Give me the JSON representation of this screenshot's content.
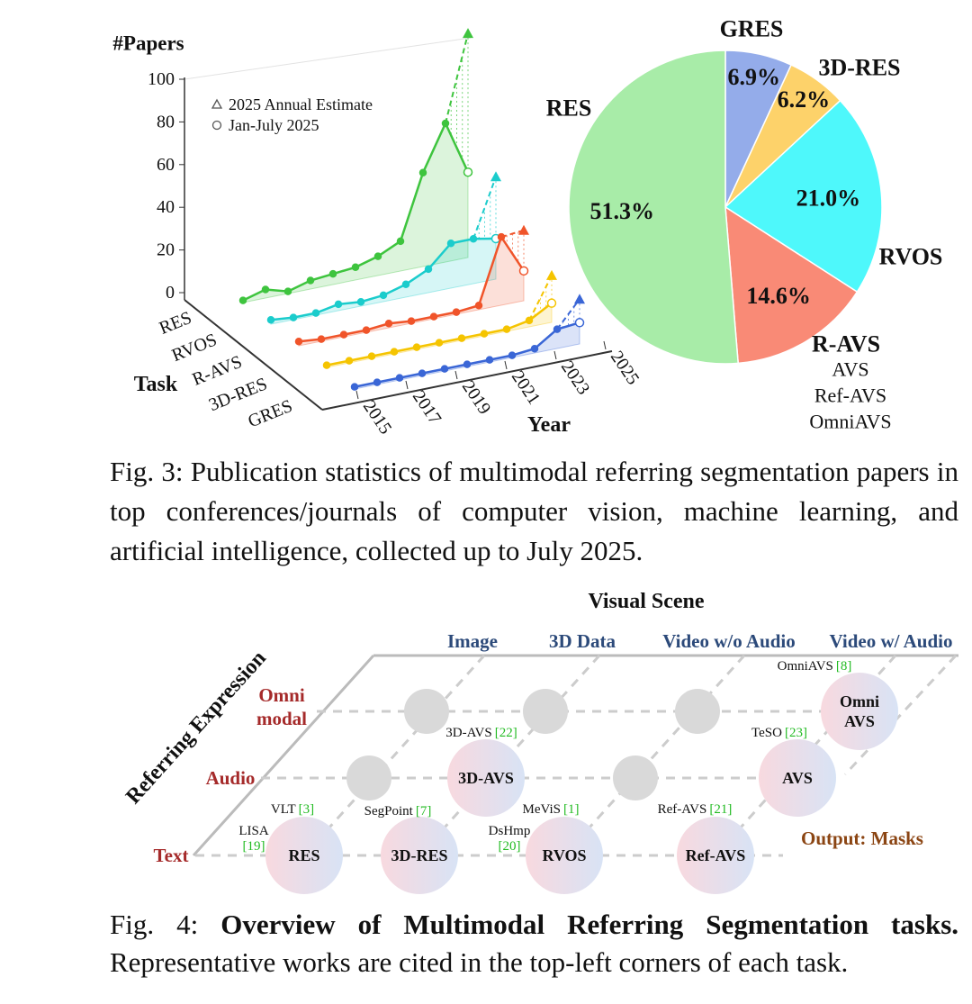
{
  "chart_data": [
    {
      "type": "line",
      "y_label": "#Papers",
      "task_label": "Task",
      "x_label": "Year",
      "x": [
        2015,
        2016,
        2017,
        2018,
        2019,
        2020,
        2021,
        2022,
        2023,
        2024,
        2025
      ],
      "xlim": [
        2015,
        2025
      ],
      "xticks": [
        2015,
        2017,
        2019,
        2021,
        2023,
        2025
      ],
      "ylim": [
        0,
        100
      ],
      "yticks": [
        0,
        20,
        40,
        60,
        80,
        100
      ],
      "legend": {
        "estimate": "2025 Annual Estimate",
        "partial": "Jan-July 2025"
      },
      "series": [
        {
          "name": "RES",
          "color": "#3ec43e",
          "values": [
            1,
            4,
            1,
            4,
            5,
            6,
            9,
            14,
            44,
            65,
            40
          ],
          "estimate": 105
        },
        {
          "name": "RVOS",
          "color": "#1bcccc",
          "values": [
            2,
            1,
            1,
            3,
            2,
            3,
            6,
            11,
            21,
            21,
            19
          ],
          "estimate": 48
        },
        {
          "name": "R-AVS",
          "color": "#f0542a",
          "values": [
            2,
            1,
            1,
            1,
            2,
            1,
            1,
            1,
            2,
            32,
            14
          ],
          "estimate": 33
        },
        {
          "name": "3D-RES",
          "color": "#f5c400",
          "values": [
            1,
            1,
            1,
            1,
            1,
            1,
            1,
            1,
            1,
            3,
            9
          ],
          "estimate": 22
        },
        {
          "name": "GRES",
          "color": "#3a66d6",
          "values": [
            1,
            1,
            1,
            1,
            1,
            1,
            1,
            1,
            2,
            9,
            10
          ],
          "estimate": 21
        }
      ]
    },
    {
      "type": "pie",
      "categories": [
        "GRES",
        "3D-RES",
        "RVOS",
        "R-AVS",
        "RES"
      ],
      "values": [
        6.9,
        6.2,
        21.0,
        14.6,
        51.3
      ],
      "value_labels": [
        "6.9%",
        "6.2%",
        "21.0%",
        "14.6%",
        "51.3%"
      ],
      "colors": [
        "#94acea",
        "#fdd26a",
        "#4ef8fb",
        "#f98a76",
        "#a8eca8"
      ],
      "annotations": [
        "AVS",
        "Ref-AVS",
        "OmniAVS"
      ]
    }
  ],
  "figure_3_caption": "Fig. 3: Publication statistics of multimodal referring segmentation papers in top conferences/journals of computer vision, machine learning, and artificial intelligence, collected up to July 2025.",
  "figure_4": {
    "title": "Visual Scene",
    "y_axis": "Referring Expression",
    "columns": [
      "Image",
      "3D Data",
      "Video w/o Audio",
      "Video w/ Audio"
    ],
    "rows": [
      [
        "Omni",
        "modal"
      ],
      [
        "Audio"
      ],
      [
        "Text"
      ]
    ],
    "nodes": [
      {
        "lines": [
          "RES"
        ],
        "citations": [
          {
            "work": "VLT",
            "ref": "[3]"
          },
          {
            "work": "LISA",
            "ref": "[19]"
          }
        ]
      },
      {
        "lines": [
          "3D-RES"
        ],
        "citations": [
          {
            "work": "SegPoint",
            "ref": "[7]"
          }
        ]
      },
      {
        "lines": [
          "RVOS"
        ],
        "citations": [
          {
            "work": "MeViS",
            "ref": "[1]"
          },
          {
            "work": "DsHmp",
            "ref": "[20]"
          }
        ]
      },
      {
        "lines": [
          "Ref-AVS"
        ],
        "citations": [
          {
            "work": "Ref-AVS",
            "ref": "[21]"
          }
        ]
      },
      {
        "lines": [
          "3D-AVS"
        ],
        "citations": [
          {
            "work": "3D-AVS",
            "ref": "[22]"
          }
        ]
      },
      {
        "lines": [
          "AVS"
        ],
        "citations": [
          {
            "work": "TeSO",
            "ref": "[23]"
          }
        ]
      },
      {
        "lines": [
          "Omni",
          "AVS"
        ],
        "citations": [
          {
            "work": "OmniAVS",
            "ref": "[8]"
          }
        ]
      }
    ],
    "output": "Output: Masks",
    "caption": {
      "label": "Fig. 4:",
      "bold": "Overview of Multimodal Referring Segmentation tasks.",
      "text": "Representative works are cited in the top-left corners of each task."
    }
  }
}
